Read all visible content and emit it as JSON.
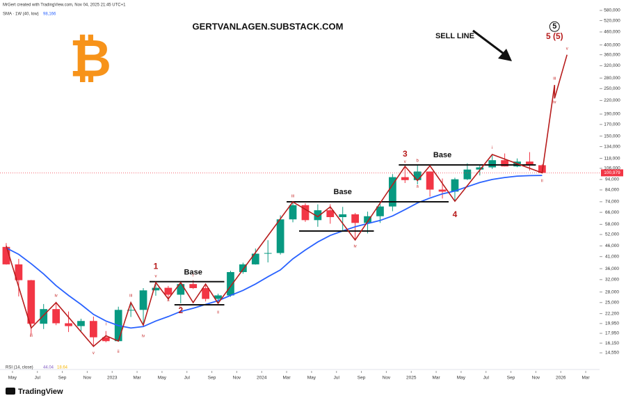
{
  "chart_data": {
    "type": "candlestick",
    "header": "MrGert created with TradingView.com, Nov 04, 2025 21:45 UTC+1",
    "watermark": "GERTVANLAGEN.SUBSTACK.COM",
    "logo": "₿",
    "logo_color": "#f7931a",
    "footer": "TradingView",
    "indicator_label": "RSI (14, close)",
    "indicator_values": [
      "44.04",
      "18.64"
    ],
    "x": [
      "2022-04",
      "2022-05",
      "2022-06",
      "2022-07",
      "2022-08",
      "2022-09",
      "2022-10",
      "2022-11",
      "2022-12",
      "2023-01",
      "2023-02",
      "2023-03",
      "2023-04",
      "2023-05",
      "2023-06",
      "2023-07",
      "2023-08",
      "2023-09",
      "2023-10",
      "2023-11",
      "2023-12",
      "2024-01",
      "2024-02",
      "2024-03",
      "2024-04",
      "2024-05",
      "2024-06",
      "2024-07",
      "2024-08",
      "2024-09",
      "2024-10",
      "2024-11",
      "2024-12",
      "2025-01",
      "2025-02",
      "2025-03",
      "2025-04",
      "2025-05",
      "2025-06",
      "2025-07",
      "2025-08",
      "2025-09",
      "2025-10",
      "2025-11"
    ],
    "open": [
      45500,
      37700,
      31800,
      19900,
      23300,
      20000,
      19400,
      20500,
      17200,
      16500,
      23100,
      23100,
      28500,
      29300,
      27200,
      30500,
      29200,
      26000,
      27000,
      34700,
      37700,
      42300,
      42600,
      61200,
      71300,
      60700,
      67500,
      62700,
      64600,
      58900,
      63300,
      70300,
      96400,
      93400,
      102400,
      84300,
      82500,
      94200,
      104600,
      107100,
      115700,
      108200,
      114000,
      109600
    ],
    "high": [
      47400,
      40000,
      31900,
      24600,
      25200,
      22700,
      21000,
      21500,
      18400,
      23900,
      25200,
      29200,
      31000,
      29900,
      31400,
      31800,
      30200,
      27500,
      35200,
      38400,
      44700,
      48900,
      63900,
      73800,
      72800,
      71900,
      72000,
      70000,
      65600,
      66500,
      73600,
      99600,
      108300,
      109600,
      102500,
      95000,
      95800,
      111900,
      110400,
      123200,
      124400,
      117900,
      126200,
      110600
    ],
    "low": [
      37600,
      26700,
      17600,
      18800,
      19600,
      18200,
      18200,
      15500,
      16300,
      16500,
      21400,
      19600,
      26900,
      25800,
      24800,
      28900,
      25300,
      24900,
      26600,
      34100,
      37600,
      38500,
      41900,
      59300,
      59600,
      56500,
      58400,
      53500,
      49000,
      52600,
      58900,
      66800,
      90500,
      89200,
      78200,
      76600,
      74400,
      93400,
      98200,
      105300,
      108100,
      107300,
      103500,
      100900
    ],
    "close": [
      37700,
      31800,
      19900,
      23300,
      20000,
      19400,
      20500,
      17200,
      16500,
      23100,
      23100,
      28500,
      29300,
      27200,
      30500,
      29200,
      26000,
      27000,
      34700,
      37700,
      42300,
      42600,
      61200,
      71300,
      60700,
      67500,
      62700,
      64600,
      58900,
      63300,
      70300,
      96400,
      93400,
      102400,
      84300,
      82500,
      94200,
      104600,
      107100,
      115700,
      108200,
      114000,
      109600,
      100979
    ],
    "last_price_label": "100,979",
    "up_color": "#089981",
    "down_color": "#f23645",
    "series": [
      {
        "name": "SMA · 1W (40, low)",
        "legend_value": "98,166",
        "color": "#2962ff",
        "values": [
          45000,
          42000,
          38000,
          34000,
          30000,
          27000,
          24500,
          22000,
          20500,
          19500,
          19000,
          19300,
          20500,
          21500,
          22700,
          23500,
          24500,
          25500,
          27000,
          28500,
          30500,
          33000,
          35500,
          40000,
          44000,
          48000,
          51500,
          54000,
          56500,
          58500,
          60500,
          63500,
          68000,
          73000,
          77000,
          80500,
          83000,
          87000,
          91000,
          94000,
          96000,
          97500,
          98000,
          98166
        ]
      }
    ],
    "wave": {
      "color": "#b71c1c",
      "x": [
        "2022-04",
        "2022-06",
        "2022-08",
        "2022-11",
        "2022-12",
        "2023-01",
        "2023-02",
        "2023-03",
        "2023-04",
        "2023-05",
        "2023-06",
        "2023-07",
        "2023-08",
        "2023-09",
        "2024-03",
        "2024-05",
        "2024-06",
        "2024-08",
        "2024-12",
        "2025-01",
        "2025-02",
        "2025-04",
        "2025-07",
        "2025-11",
        "2025-12",
        "2025-12",
        "2026-01"
      ],
      "values": [
        46000,
        19000,
        25000,
        15600,
        17500,
        16500,
        25000,
        19600,
        31000,
        26000,
        31000,
        25000,
        30500,
        24800,
        73800,
        63000,
        70000,
        49000,
        108300,
        93000,
        109000,
        74400,
        123000,
        100979,
        260000,
        225000,
        360000
      ]
    },
    "levels": {
      "color": "#111111",
      "items": [
        {
          "value": 31300,
          "from": "2023-04",
          "to": "2023-10"
        },
        {
          "value": 24400,
          "from": "2023-06",
          "to": "2023-10"
        },
        {
          "value": 73900,
          "from": "2024-03",
          "to": "2025-04"
        },
        {
          "value": 54000,
          "from": "2024-04",
          "to": "2024-10"
        },
        {
          "value": 110000,
          "from": "2024-12",
          "to": "2025-11"
        }
      ]
    },
    "annotations": [
      {
        "text": "1",
        "x": "2023-04",
        "y": 36800,
        "kind": "count"
      },
      {
        "text": "2",
        "x": "2023-06",
        "y": 22800,
        "kind": "count"
      },
      {
        "text": "3",
        "x": "2024-12",
        "y": 123000,
        "kind": "count"
      },
      {
        "text": "4",
        "x": "2025-04",
        "y": 64100,
        "kind": "count"
      },
      {
        "text": "5",
        "x": "2025-12",
        "y": 487000,
        "kind": "circle"
      },
      {
        "text": "5 (5)",
        "x": "2025-12",
        "y": 437000,
        "kind": "count"
      },
      {
        "text": "Base",
        "x": "2023-07",
        "y": 34500,
        "kind": "base"
      },
      {
        "text": "Base",
        "x": "2024-07",
        "y": 82000,
        "kind": "base"
      },
      {
        "text": "Base",
        "x": "2025-03",
        "y": 122000,
        "kind": "base"
      },
      {
        "text": "SELL LINE",
        "x": "2025-04",
        "y": 440000,
        "kind": "base"
      },
      {
        "text": "iii",
        "x": "2022-06",
        "y": 17500,
        "kind": "sub"
      },
      {
        "text": "iv",
        "x": "2022-08",
        "y": 26900,
        "kind": "sub"
      },
      {
        "text": "v",
        "x": "2022-11",
        "y": 14500,
        "kind": "sub"
      },
      {
        "text": "i",
        "x": "2022-12",
        "y": 19800,
        "kind": "sub"
      },
      {
        "text": "ii",
        "x": "2023-01",
        "y": 14700,
        "kind": "sub"
      },
      {
        "text": "iii",
        "x": "2023-02",
        "y": 26900,
        "kind": "sub"
      },
      {
        "text": "iv",
        "x": "2023-03",
        "y": 17400,
        "kind": "sub"
      },
      {
        "text": "v",
        "x": "2023-04",
        "y": 33200,
        "kind": "sub"
      },
      {
        "text": "a",
        "x": "2023-05",
        "y": 25600,
        "kind": "sub"
      },
      {
        "text": "i",
        "x": "2023-07",
        "y": 33500,
        "kind": "sub"
      },
      {
        "text": "c",
        "x": "2023-06",
        "y": 24000,
        "kind": "sub"
      },
      {
        "text": "ii",
        "x": "2023-09",
        "y": 22500,
        "kind": "sub"
      },
      {
        "text": "iii",
        "x": "2024-03",
        "y": 78500,
        "kind": "sub"
      },
      {
        "text": "iv",
        "x": "2024-08",
        "y": 45800,
        "kind": "sub"
      },
      {
        "text": "v",
        "x": "2024-12",
        "y": 114000,
        "kind": "sub"
      },
      {
        "text": "a",
        "x": "2025-01",
        "y": 87200,
        "kind": "sub"
      },
      {
        "text": "b",
        "x": "2025-01",
        "y": 115000,
        "kind": "sub"
      },
      {
        "text": "i",
        "x": "2025-07",
        "y": 132000,
        "kind": "sub"
      },
      {
        "text": "ii",
        "x": "2025-11",
        "y": 92500,
        "kind": "sub"
      },
      {
        "text": "iii",
        "x": "2025-12",
        "y": 278000,
        "kind": "sub"
      },
      {
        "text": "iv",
        "x": "2025-12",
        "y": 216000,
        "kind": "sub"
      },
      {
        "text": "v",
        "x": "2026-01",
        "y": 384000,
        "kind": "sub"
      }
    ],
    "log_scale": true,
    "ylim": [
      12250,
      625000
    ],
    "yticks": [
      {
        "value": 580000,
        "label": "580,000"
      },
      {
        "value": 520000,
        "label": "520,000"
      },
      {
        "value": 460000,
        "label": "460,000"
      },
      {
        "value": 400000,
        "label": "400,000"
      },
      {
        "value": 360000,
        "label": "360,000"
      },
      {
        "value": 320000,
        "label": "320,000"
      },
      {
        "value": 280000,
        "label": "280,000"
      },
      {
        "value": 250000,
        "label": "250,000"
      },
      {
        "value": 220000,
        "label": "220,000"
      },
      {
        "value": 190000,
        "label": "190,000"
      },
      {
        "value": 170000,
        "label": "170,000"
      },
      {
        "value": 150000,
        "label": "150,000"
      },
      {
        "value": 134000,
        "label": "134,000"
      },
      {
        "value": 118000,
        "label": "118,000"
      },
      {
        "value": 106000,
        "label": "106,000"
      },
      {
        "value": 94000,
        "label": "94,000"
      },
      {
        "value": 84000,
        "label": "84,000"
      },
      {
        "value": 74000,
        "label": "74,000"
      },
      {
        "value": 66000,
        "label": "66,000"
      },
      {
        "value": 58000,
        "label": "58,000"
      },
      {
        "value": 52000,
        "label": "52,000"
      },
      {
        "value": 46000,
        "label": "46,000"
      },
      {
        "value": 41000,
        "label": "41,000"
      },
      {
        "value": 36000,
        "label": "36,000"
      },
      {
        "value": 32000,
        "label": "32,000"
      },
      {
        "value": 28000,
        "label": "28,000"
      },
      {
        "value": 25000,
        "label": "25,000"
      },
      {
        "value": 22200,
        "label": "22,200"
      },
      {
        "value": 19950,
        "label": "19,950"
      },
      {
        "value": 17950,
        "label": "17,950"
      },
      {
        "value": 16150,
        "label": "16,150"
      },
      {
        "value": 14550,
        "label": "14,550"
      }
    ],
    "xlim": [
      "2022-04",
      "2026-04"
    ],
    "xticks": [
      {
        "value": "2022-05",
        "label": "May"
      },
      {
        "value": "2022-07",
        "label": "Jul"
      },
      {
        "value": "2022-09",
        "label": "Sep"
      },
      {
        "value": "2022-11",
        "label": "Nov"
      },
      {
        "value": "2023-01",
        "label": "2023"
      },
      {
        "value": "2023-03",
        "label": "Mar"
      },
      {
        "value": "2023-05",
        "label": "May"
      },
      {
        "value": "2023-07",
        "label": "Jul"
      },
      {
        "value": "2023-09",
        "label": "Sep"
      },
      {
        "value": "2023-11",
        "label": "Nov"
      },
      {
        "value": "2024-01",
        "label": "2024"
      },
      {
        "value": "2024-03",
        "label": "Mar"
      },
      {
        "value": "2024-05",
        "label": "May"
      },
      {
        "value": "2024-07",
        "label": "Jul"
      },
      {
        "value": "2024-09",
        "label": "Sep"
      },
      {
        "value": "2024-11",
        "label": "Nov"
      },
      {
        "value": "2025-01",
        "label": "2025"
      },
      {
        "value": "2025-03",
        "label": "Mar"
      },
      {
        "value": "2025-05",
        "label": "May"
      },
      {
        "value": "2025-07",
        "label": "Jul"
      },
      {
        "value": "2025-09",
        "label": "Sep"
      },
      {
        "value": "2025-11",
        "label": "Nov"
      },
      {
        "value": "2026-01",
        "label": "2026"
      },
      {
        "value": "2026-03",
        "label": "Mar"
      }
    ],
    "grid": false
  }
}
